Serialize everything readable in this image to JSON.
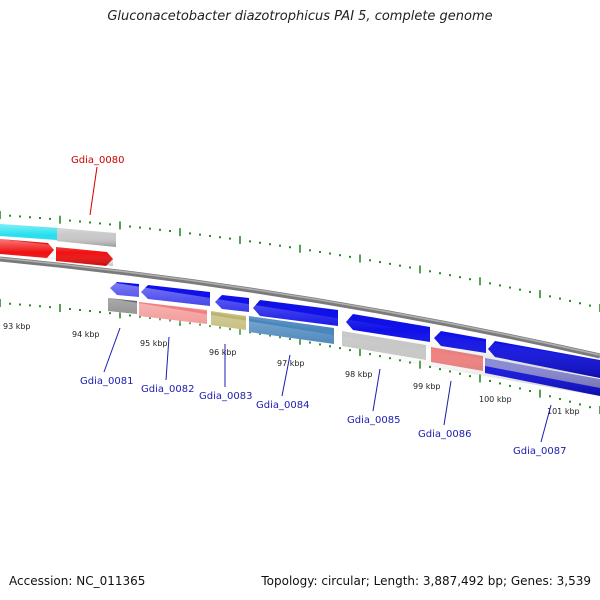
{
  "title": "Gluconacetobacter diazotrophicus PAI 5, complete genome",
  "accession_text": "Accession: NC_011365",
  "summary_text": "Topology: circular; Length: 3,887,492 bp; Genes: 3,539",
  "colors": {
    "backbone": "#7a7a7a",
    "tick": "#2a8a2a",
    "label_top": "#d00000",
    "label_bottom": "#1c1cb0"
  },
  "kbp_labels": [
    "93 kbp",
    "94 kbp",
    "95 kbp",
    "96 kbp",
    "97 kbp",
    "98 kbp",
    "99 kbp",
    "100 kbp",
    "101 kbp"
  ],
  "gene_labels_top": [
    {
      "name": "Gdia_0080"
    }
  ],
  "gene_labels_bottom": [
    {
      "name": "Gdia_0081"
    },
    {
      "name": "Gdia_0082"
    },
    {
      "name": "Gdia_0083"
    },
    {
      "name": "Gdia_0084"
    },
    {
      "name": "Gdia_0085"
    },
    {
      "name": "Gdia_0086"
    },
    {
      "name": "Gdia_0087"
    }
  ]
}
